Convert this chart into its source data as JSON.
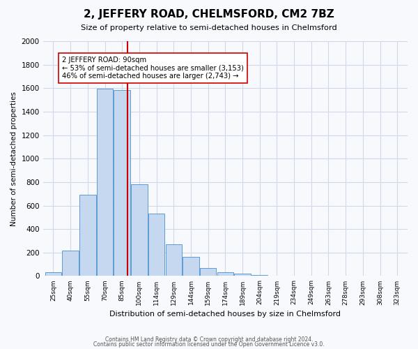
{
  "title": "2, JEFFERY ROAD, CHELMSFORD, CM2 7BZ",
  "subtitle": "Size of property relative to semi-detached houses in Chelmsford",
  "xlabel": "Distribution of semi-detached houses by size in Chelmsford",
  "ylabel": "Number of semi-detached properties",
  "bin_labels": [
    "25sqm",
    "40sqm",
    "55sqm",
    "70sqm",
    "85sqm",
    "100sqm",
    "114sqm",
    "129sqm",
    "144sqm",
    "159sqm",
    "174sqm",
    "189sqm",
    "204sqm",
    "219sqm",
    "234sqm",
    "249sqm",
    "263sqm",
    "278sqm",
    "293sqm",
    "308sqm",
    "323sqm"
  ],
  "bar_values": [
    35,
    215,
    690,
    1595,
    1585,
    780,
    530,
    270,
    165,
    65,
    30,
    18,
    10,
    4,
    2,
    1,
    0,
    0,
    0,
    1,
    0
  ],
  "bar_color": "#c5d8f0",
  "bar_edge_color": "#5b9bd5",
  "property_value": 90,
  "property_label": "2 JEFFERY ROAD: 90sqm",
  "pct_smaller": 53,
  "count_smaller": 3153,
  "pct_larger": 46,
  "count_larger": 2743,
  "vline_color": "#cc0000",
  "annotation_box_edge": "#cc0000",
  "ylim": [
    0,
    2000
  ],
  "yticks": [
    0,
    200,
    400,
    600,
    800,
    1000,
    1200,
    1400,
    1600,
    1800,
    2000
  ],
  "footer_line1": "Contains HM Land Registry data © Crown copyright and database right 2024.",
  "footer_line2": "Contains public sector information licensed under the Open Government Licence v3.0.",
  "bg_color": "#f7f9fd",
  "grid_color": "#d0d8e8"
}
